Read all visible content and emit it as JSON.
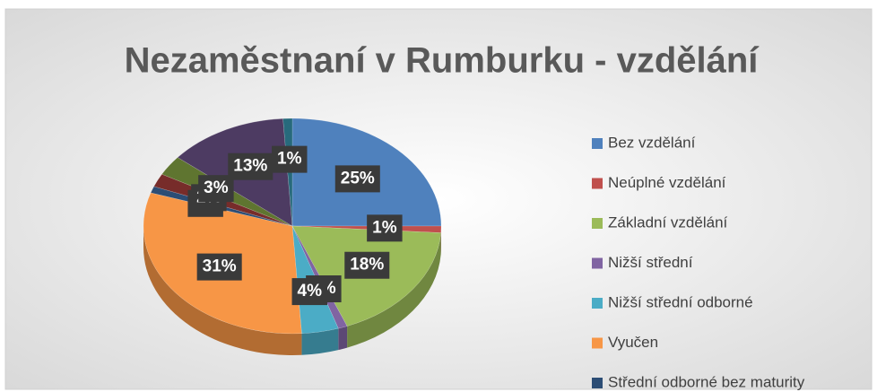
{
  "chart_data": {
    "type": "pie",
    "title": "Nezaměstnaní v Rumburku - vzdělání",
    "categories": [
      "Bez vzdělání",
      "Neúplné vzdělání",
      "Základní vzdělání",
      "Nižší střední",
      "Nižší střední odborné",
      "Vyučen",
      "Střední odborné bez maturity",
      null,
      null,
      null,
      null
    ],
    "values": [
      25,
      1,
      18,
      1,
      4,
      31,
      1,
      2,
      3,
      13,
      1
    ],
    "value_labels": [
      "25%",
      "1%",
      "18%",
      "1%",
      "4%",
      "31%",
      "1%",
      "2%",
      "3%",
      "13%",
      "1%"
    ],
    "colors": [
      "#4f81bd",
      "#c0504d",
      "#9bbb59",
      "#8064a2",
      "#4bacc6",
      "#f79646",
      "#2c4d75",
      "#772c2a",
      "#5f7530",
      "#4d3b62",
      "#276a7c"
    ],
    "legend": "right"
  }
}
